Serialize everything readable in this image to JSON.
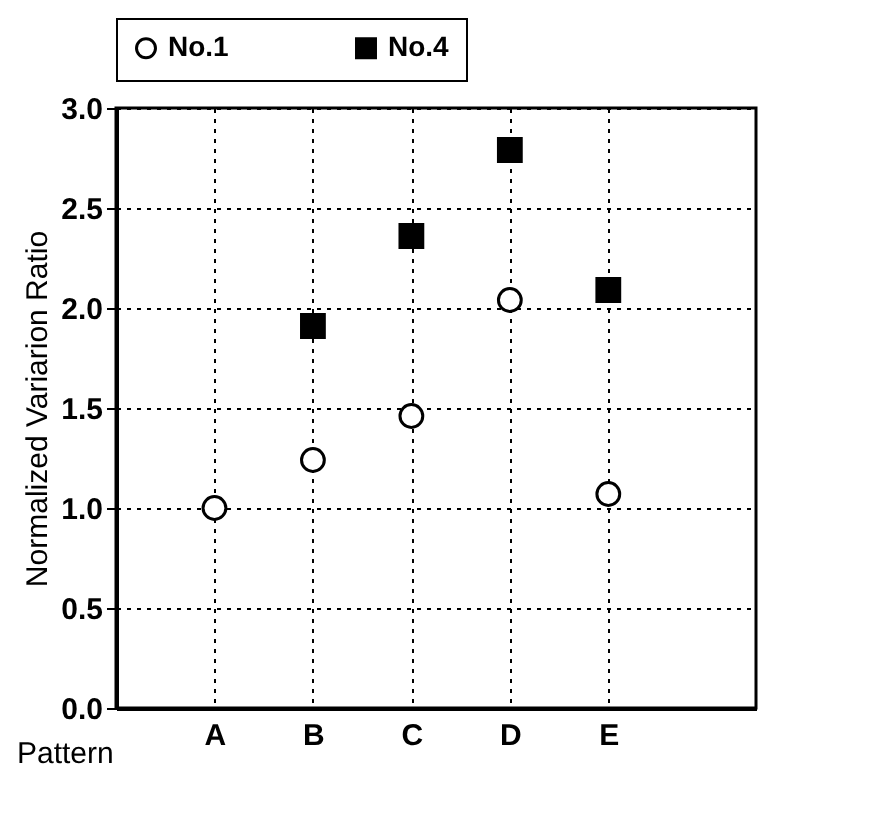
{
  "chart_data": {
    "type": "scatter",
    "xlabel": "Pattern",
    "ylabel": "Normalized Variarion Ratio",
    "categories": [
      "A",
      "B",
      "C",
      "D",
      "E"
    ],
    "series": [
      {
        "name": "No.1",
        "color": "#000000",
        "marker": "circle",
        "values": [
          1.0,
          1.24,
          1.46,
          2.04,
          1.07
        ]
      },
      {
        "name": "No.4",
        "color": "#000000",
        "marker": "square",
        "values": [
          null,
          1.91,
          2.36,
          2.79,
          2.09
        ]
      }
    ],
    "ylim": [
      0,
      3
    ],
    "yticks": [
      {
        "value": 0,
        "label": "0.0"
      },
      0.5,
      {
        "value": 1,
        "label": "1.0"
      },
      1.5,
      {
        "value": 2,
        "label": "2.0"
      },
      2.5,
      {
        "value": 3,
        "label": "3.0"
      }
    ],
    "grid": true,
    "legend": "top"
  }
}
